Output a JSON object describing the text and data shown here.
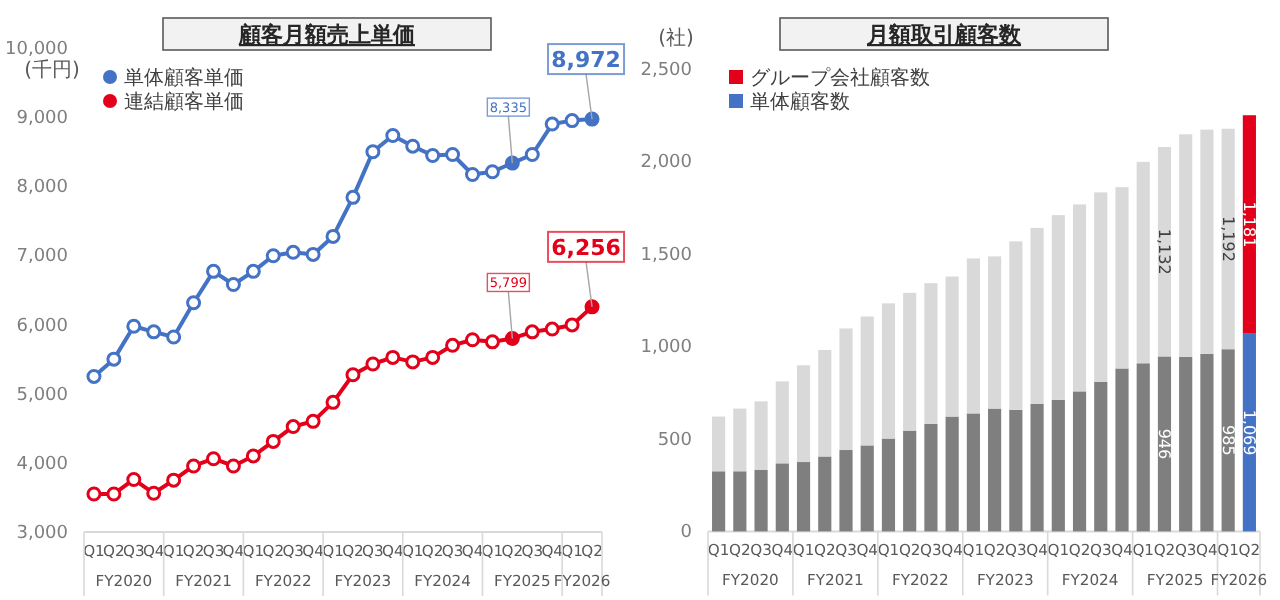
{
  "chart_data": [
    {
      "type": "line",
      "title": "顧客月額売上単価",
      "ylabel": "(千円)",
      "categories": [
        "Q1",
        "Q2",
        "Q3",
        "Q4",
        "Q1",
        "Q2",
        "Q3",
        "Q4",
        "Q1",
        "Q2",
        "Q3",
        "Q4",
        "Q1",
        "Q2",
        "Q3",
        "Q4",
        "Q1",
        "Q2",
        "Q3",
        "Q4",
        "Q1",
        "Q2",
        "Q3",
        "Q4",
        "Q1",
        "Q2"
      ],
      "annotations": [
        "FY2020",
        "FY2021",
        "FY2022",
        "FY2023",
        "FY2024",
        "FY2025",
        "FY2026"
      ],
      "series": [
        {
          "name": "単体顧客単価",
          "color": "#4472c4",
          "values": [
            5250,
            5500,
            5975,
            5895,
            5820,
            6315,
            6770,
            6580,
            6770,
            6995,
            7045,
            7015,
            7275,
            7840,
            8500,
            8735,
            8580,
            8445,
            8460,
            8170,
            8210,
            8335,
            8460,
            8900,
            8950,
            8972
          ],
          "value_labels": [
            null,
            null,
            null,
            null,
            null,
            null,
            null,
            null,
            null,
            null,
            null,
            null,
            null,
            null,
            null,
            null,
            null,
            null,
            null,
            null,
            null,
            "8,335",
            null,
            null,
            null,
            "8,972"
          ]
        },
        {
          "name": "連結顧客単価",
          "color": "#e2001a",
          "values": [
            3550,
            3550,
            3760,
            3560,
            3750,
            3955,
            4060,
            3955,
            4100,
            4310,
            4525,
            4600,
            4875,
            5275,
            5430,
            5525,
            5460,
            5525,
            5700,
            5780,
            5750,
            5799,
            5895,
            5935,
            5995,
            6256
          ],
          "value_labels": [
            null,
            null,
            null,
            null,
            null,
            null,
            null,
            null,
            null,
            null,
            null,
            null,
            null,
            null,
            null,
            null,
            null,
            null,
            null,
            null,
            null,
            "5,799",
            null,
            null,
            null,
            "6,256"
          ]
        }
      ],
      "ylim": [
        3000,
        10000
      ],
      "yticks": [
        {
          "value": 3000,
          "label": "3,000"
        },
        {
          "value": 4000,
          "label": "4,000"
        },
        {
          "value": 5000,
          "label": "5,000"
        },
        {
          "value": 6000,
          "label": "6,000"
        },
        {
          "value": 7000,
          "label": "7,000"
        },
        {
          "value": 8000,
          "label": "8,000"
        },
        {
          "value": 9000,
          "label": "9,000"
        },
        {
          "value": 10000,
          "label": "10,000"
        }
      ],
      "legend": "top left",
      "marker": "circle",
      "line_style": "solid"
    },
    {
      "type": "bar",
      "stacked": true,
      "title": "月額取引顧客数",
      "ylabel": "(社)",
      "categories": [
        "Q1",
        "Q2",
        "Q3",
        "Q4",
        "Q1",
        "Q2",
        "Q3",
        "Q4",
        "Q1",
        "Q2",
        "Q3",
        "Q4",
        "Q1",
        "Q2",
        "Q3",
        "Q4",
        "Q1",
        "Q2",
        "Q3",
        "Q4",
        "Q1",
        "Q2",
        "Q3",
        "Q4",
        "Q1",
        "Q2"
      ],
      "annotations": [
        "FY2020",
        "FY2021",
        "FY2022",
        "FY2023",
        "FY2024",
        "FY2025",
        "FY2026"
      ],
      "series": [
        {
          "name": "単体顧客数",
          "color": "#4472c4",
          "colors": [
            "#7f7f7f",
            "#7f7f7f",
            "#7f7f7f",
            "#7f7f7f",
            "#7f7f7f",
            "#7f7f7f",
            "#7f7f7f",
            "#7f7f7f",
            "#7f7f7f",
            "#7f7f7f",
            "#7f7f7f",
            "#7f7f7f",
            "#7f7f7f",
            "#7f7f7f",
            "#7f7f7f",
            "#7f7f7f",
            "#7f7f7f",
            "#7f7f7f",
            "#7f7f7f",
            "#7f7f7f",
            "#7f7f7f",
            "#7f7f7f",
            "#7f7f7f",
            "#7f7f7f",
            "#7f7f7f",
            "#4472c4"
          ],
          "values": [
            325,
            325,
            332,
            368,
            375,
            405,
            440,
            465,
            502,
            545,
            581,
            621,
            638,
            664,
            657,
            689,
            711,
            757,
            808,
            881,
            909,
            946,
            944,
            960,
            985,
            1069
          ],
          "value_labels": [
            null,
            null,
            null,
            null,
            null,
            null,
            null,
            null,
            null,
            null,
            null,
            null,
            null,
            null,
            null,
            null,
            null,
            null,
            null,
            null,
            null,
            "946",
            null,
            null,
            "985",
            "1,069"
          ]
        },
        {
          "name": "グループ会社顧客数",
          "color": "#e2001a",
          "colors": [
            "#d9d9d9",
            "#d9d9d9",
            "#d9d9d9",
            "#d9d9d9",
            "#d9d9d9",
            "#d9d9d9",
            "#d9d9d9",
            "#d9d9d9",
            "#d9d9d9",
            "#d9d9d9",
            "#d9d9d9",
            "#d9d9d9",
            "#d9d9d9",
            "#d9d9d9",
            "#d9d9d9",
            "#d9d9d9",
            "#d9d9d9",
            "#d9d9d9",
            "#d9d9d9",
            "#d9d9d9",
            "#d9d9d9",
            "#d9d9d9",
            "#d9d9d9",
            "#d9d9d9",
            "#d9d9d9",
            "#e2001a"
          ],
          "values": [
            296,
            339,
            371,
            443,
            523,
            576,
            657,
            697,
            731,
            745,
            761,
            757,
            838,
            823,
            911,
            952,
            999,
            1011,
            1025,
            980,
            1089,
            1132,
            1203,
            1212,
            1192,
            1181
          ],
          "value_labels": [
            null,
            null,
            null,
            null,
            null,
            null,
            null,
            null,
            null,
            null,
            null,
            null,
            null,
            null,
            null,
            null,
            null,
            null,
            null,
            null,
            null,
            "1,132",
            null,
            null,
            "1,192",
            "1,181"
          ]
        }
      ],
      "ylim": [
        0,
        2500
      ],
      "yticks": [
        {
          "value": 0,
          "label": "0"
        },
        {
          "value": 500,
          "label": "500"
        },
        {
          "value": 1000,
          "label": "1,000"
        },
        {
          "value": 1500,
          "label": "1,500"
        },
        {
          "value": 2000,
          "label": "2,000"
        },
        {
          "value": 2500,
          "label": "2,500"
        }
      ],
      "legend": "top left"
    }
  ]
}
